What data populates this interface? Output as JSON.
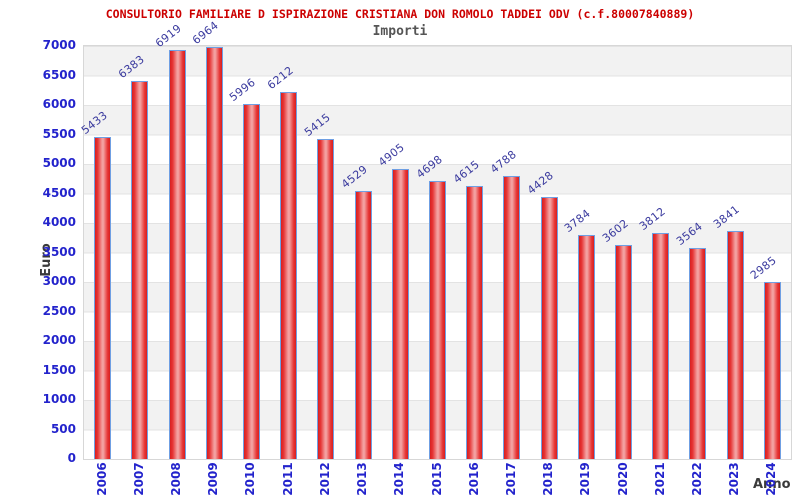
{
  "chart_data": {
    "type": "bar",
    "title": "CONSULTORIO FAMILIARE D ISPIRAZIONE CRISTIANA DON ROMOLO TADDEI ODV (c.f.80007840889)",
    "subtitle": "Importi",
    "xlabel": "Anno",
    "ylabel": "Euro",
    "categories": [
      "2006",
      "2007",
      "2008",
      "2009",
      "2010",
      "2011",
      "2012",
      "2013",
      "2014",
      "2015",
      "2016",
      "2017",
      "2018",
      "2019",
      "2020",
      "2021",
      "2022",
      "2023",
      "2024"
    ],
    "values": [
      5433,
      6383,
      6919,
      6964,
      5996,
      6212,
      5415,
      4529,
      4905,
      4698,
      4615,
      4788,
      4428,
      3784,
      3602,
      3812,
      3564,
      3841,
      2985
    ],
    "ylim": [
      0,
      7000
    ],
    "ytick_step": 500,
    "grid": "horizontal-bands-alternating",
    "legend": "none",
    "bar_labels_rotated": true,
    "x_labels_rotated_90": true
  },
  "colors": {
    "title-color": "#cc0000",
    "subtitle-color": "#555555",
    "bar-edge": "#d81f1f",
    "bar-center": "#f3a0a0",
    "bar-border": "#6f9fe3",
    "tick-label": "#2323cc",
    "value-label": "#3a3a9e",
    "axis-title": "#3a3a3a",
    "band-gray": "#f2f2f2",
    "band-white": "#ffffff",
    "grid-line": "#e3e3e3",
    "plot-border": "#d7d7d7"
  }
}
